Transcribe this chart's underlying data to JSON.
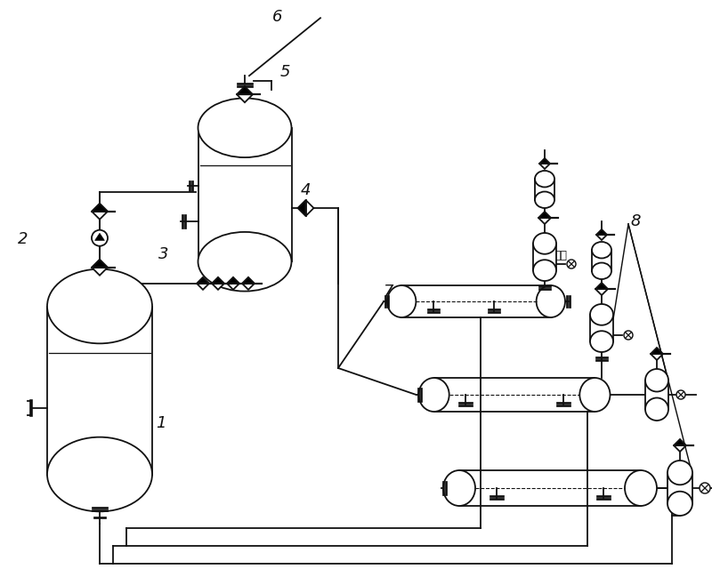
{
  "bg_color": "#ffffff",
  "lc": "#111111",
  "lw": 1.3,
  "exhaust_text": "排气"
}
